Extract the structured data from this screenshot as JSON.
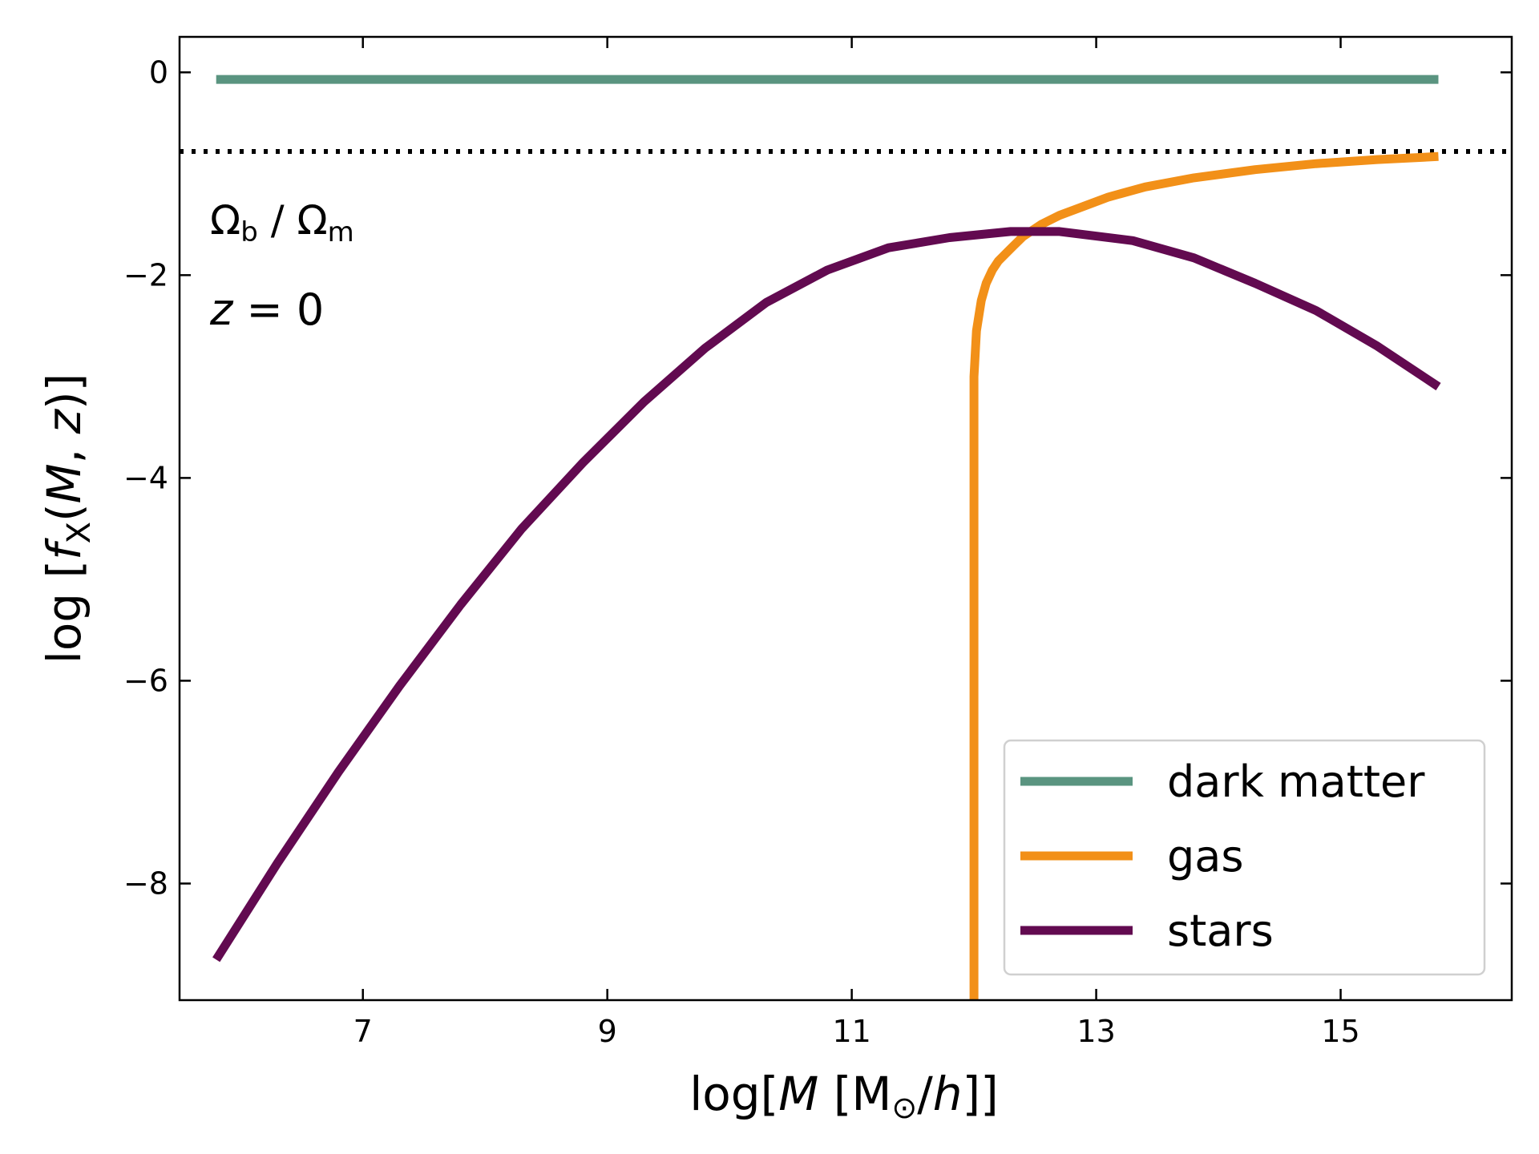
{
  "chart_data": {
    "type": "line",
    "xlabel": "log[M [M⊙/h]]",
    "ylabel": "log [fX(M, z)]",
    "xlim": [
      5.5,
      16.4
    ],
    "ylim": [
      -9.15,
      0.35
    ],
    "xticks": [
      7,
      9,
      11,
      13,
      15
    ],
    "yticks": [
      0,
      -2,
      -4,
      -6,
      -8
    ],
    "xtick_labels": [
      "7",
      "9",
      "11",
      "13",
      "15"
    ],
    "ytick_labels": [
      "0",
      "−2",
      "−4",
      "−6",
      "−8"
    ],
    "grid": false,
    "legend_position": "bottom-right",
    "reference_line": {
      "y": -0.78,
      "style": "dotted",
      "color": "#000000"
    },
    "annotations": [
      {
        "base": "Ω",
        "sub": "b",
        "sep": " / ",
        "base2": "Ω",
        "sub2": "m"
      },
      {
        "text_italic": "z",
        "text": " = 0"
      }
    ],
    "series": [
      {
        "name": "dark matter",
        "color": "#5a9480",
        "x": [
          5.8,
          15.8
        ],
        "y": [
          -0.07,
          -0.07
        ]
      },
      {
        "name": "gas",
        "color": "#f29018",
        "x": [
          12.0,
          12.0,
          12.0,
          12.02,
          12.04,
          12.06,
          12.1,
          12.15,
          12.2,
          12.3,
          12.4,
          12.55,
          12.7,
          12.9,
          13.1,
          13.4,
          13.8,
          14.3,
          14.8,
          15.3,
          15.8
        ],
        "y": [
          -9.15,
          -6.0,
          -3.0,
          -2.55,
          -2.4,
          -2.25,
          -2.08,
          -1.95,
          -1.86,
          -1.74,
          -1.62,
          -1.5,
          -1.41,
          -1.32,
          -1.23,
          -1.13,
          -1.04,
          -0.96,
          -0.9,
          -0.86,
          -0.83
        ]
      },
      {
        "name": "stars",
        "color": "#620a50",
        "x": [
          5.8,
          6.3,
          6.8,
          7.3,
          7.8,
          8.3,
          8.8,
          9.3,
          9.8,
          10.3,
          10.8,
          11.3,
          11.8,
          12.3,
          12.7,
          13.3,
          13.8,
          14.3,
          14.8,
          15.3,
          15.8
        ],
        "y": [
          -8.75,
          -7.8,
          -6.9,
          -6.05,
          -5.25,
          -4.5,
          -3.85,
          -3.25,
          -2.72,
          -2.27,
          -1.95,
          -1.73,
          -1.63,
          -1.57,
          -1.57,
          -1.66,
          -1.83,
          -2.08,
          -2.35,
          -2.7,
          -3.1
        ]
      }
    ]
  }
}
